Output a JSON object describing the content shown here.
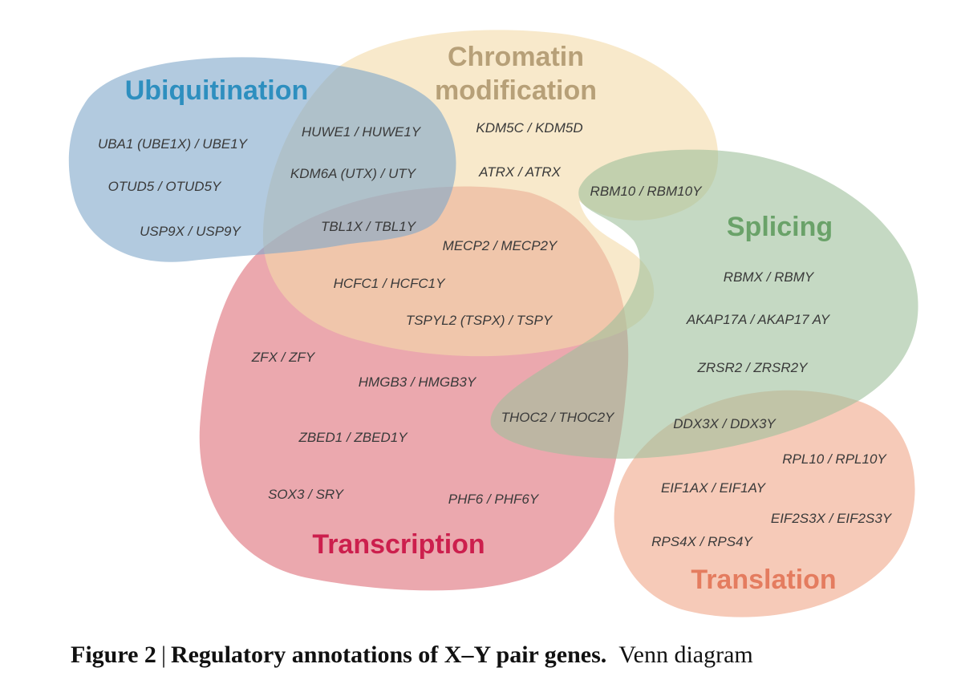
{
  "colors": {
    "ubiquitination": "#7ea6c9",
    "chromatin": "#f3dba8",
    "splicing": "#9ec09b",
    "transcription": "#de6e78",
    "translation": "#f0a688",
    "ubiquitination_text": "#2e8fbf",
    "chromatin_text": "#b7a078",
    "splicing_text": "#6aa269",
    "transcription_text": "#cc1f4d",
    "translation_text": "#e47c5f"
  },
  "sets": {
    "ubiquitination": "Ubiquitination",
    "chromatin_line1": "Chromatin",
    "chromatin_line2": "modification",
    "splicing": "Splicing",
    "transcription": "Transcription",
    "translation": "Translation"
  },
  "genes": [
    "UBA1 (UBE1X) / UBE1Y",
    "OTUD5 / OTUD5Y",
    "USP9X / USP9Y",
    "HUWE1 / HUWE1Y",
    "KDM6A (UTX) / UTY",
    "TBL1X / TBL1Y",
    "KDM5C / KDM5D",
    "ATRX / ATRX",
    "RBM10 / RBM10Y",
    "MECP2 / MECP2Y",
    "HCFC1 / HCFC1Y",
    "TSPYL2 (TSPX) / TSPY",
    "RBMX / RBMY",
    "AKAP17A / AKAP17 AY",
    "ZRSR2 / ZRSR2Y",
    "ZFX / ZFY",
    "HMGB3 / HMGB3Y",
    "THOC2 / THOC2Y",
    "DDX3X / DDX3Y",
    "ZBED1 / ZBED1Y",
    "RPL10 / RPL10Y",
    "EIF1AX / EIF1AY",
    "EIF2S3X / EIF2S3Y",
    "SOX3 / SRY",
    "PHF6 / PHF6Y",
    "RPS4X / RPS4Y"
  ],
  "caption": {
    "label": "Figure 2",
    "separator": "|",
    "title": "Regulatory annotations of X–Y pair genes.",
    "text": "Venn diagram"
  }
}
